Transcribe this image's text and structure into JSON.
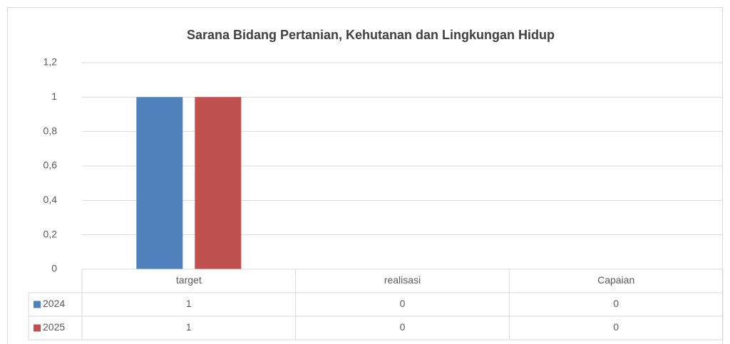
{
  "chart_data": {
    "type": "bar",
    "title": "Sarana Bidang Pertanian, Kehutanan dan Lingkungan Hidup",
    "categories": [
      "target",
      "realisasi",
      "Capaian"
    ],
    "series": [
      {
        "name": "2024",
        "color": "#4f81bd",
        "values": [
          1,
          0,
          0
        ]
      },
      {
        "name": "2025",
        "color": "#c0504d",
        "values": [
          1,
          0,
          0
        ]
      }
    ],
    "ylim": [
      0,
      1.2
    ],
    "yticks": [
      0,
      {
        "value": 0.2,
        "label": "0,2"
      },
      {
        "value": 0.4,
        "label": "0,4"
      },
      {
        "value": 0.6,
        "label": "0,6"
      },
      {
        "value": 0.8,
        "label": "0,8"
      },
      1,
      {
        "value": 1.2,
        "label": "1,2"
      }
    ],
    "grid": true,
    "data_table": true
  }
}
